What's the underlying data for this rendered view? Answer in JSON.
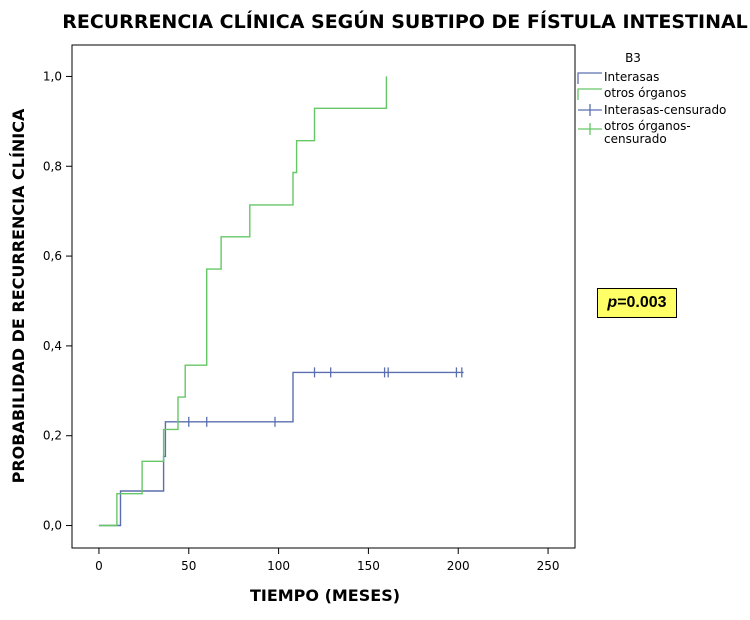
{
  "chart_data": {
    "type": "line",
    "title": "RECURRENCIA CLÍNICA SEGÚN SUBTIPO DE FÍSTULA INTESTINAL",
    "xlabel": "TIEMPO (MESES)",
    "ylabel": "PROBABILIDAD DE RECURRENCIA CLÍNICA",
    "xlim": [
      -15,
      265
    ],
    "ylim": [
      -0.05,
      1.07
    ],
    "x_ticks": [
      0,
      50,
      100,
      150,
      200,
      250
    ],
    "y_ticks": [
      0.0,
      0.2,
      0.4,
      0.6,
      0.8,
      1.0
    ],
    "x_tick_labels": [
      "0",
      "50",
      "100",
      "150",
      "200",
      "250"
    ],
    "y_tick_labels": [
      "0,0",
      "0,2",
      "0,4",
      "0,6",
      "0,8",
      "1,0"
    ],
    "legend": {
      "title": "B3",
      "position": "right",
      "entries": [
        "Interasas",
        "otros órganos",
        "Interasas-censurado",
        "otros órganos-",
        "censurado"
      ]
    },
    "annotation": {
      "p_symbol": "p",
      "p_value": "=0.003"
    },
    "series": [
      {
        "name": "Interasas",
        "color": "#5b6fae",
        "step": true,
        "points": [
          [
            0,
            0.0
          ],
          [
            12,
            0.0
          ],
          [
            12,
            0.077
          ],
          [
            36,
            0.077
          ],
          [
            36,
            0.154
          ],
          [
            37,
            0.154
          ],
          [
            37,
            0.231
          ],
          [
            108,
            0.231
          ],
          [
            108,
            0.341
          ],
          [
            203,
            0.341
          ]
        ]
      },
      {
        "name": "otros órganos",
        "color": "#66c766",
        "step": true,
        "points": [
          [
            0,
            0.0
          ],
          [
            10,
            0.0
          ],
          [
            10,
            0.071
          ],
          [
            24,
            0.071
          ],
          [
            24,
            0.143
          ],
          [
            36,
            0.143
          ],
          [
            36,
            0.214
          ],
          [
            44,
            0.214
          ],
          [
            44,
            0.286
          ],
          [
            48,
            0.286
          ],
          [
            48,
            0.357
          ],
          [
            60,
            0.357
          ],
          [
            60,
            0.571
          ],
          [
            68,
            0.571
          ],
          [
            68,
            0.643
          ],
          [
            84,
            0.643
          ],
          [
            84,
            0.714
          ],
          [
            108,
            0.714
          ],
          [
            108,
            0.786
          ],
          [
            110,
            0.786
          ],
          [
            110,
            0.857
          ],
          [
            120,
            0.857
          ],
          [
            120,
            0.929
          ],
          [
            160,
            0.929
          ],
          [
            160,
            1.0
          ]
        ]
      }
    ],
    "censored": {
      "name": "Interasas-censurado",
      "color": "#5b6fae",
      "points": [
        [
          50,
          0.231
        ],
        [
          60,
          0.231
        ],
        [
          98,
          0.231
        ],
        [
          120,
          0.341
        ],
        [
          129,
          0.341
        ],
        [
          159,
          0.341
        ],
        [
          161,
          0.341
        ],
        [
          199,
          0.341
        ],
        [
          202,
          0.341
        ]
      ]
    }
  }
}
